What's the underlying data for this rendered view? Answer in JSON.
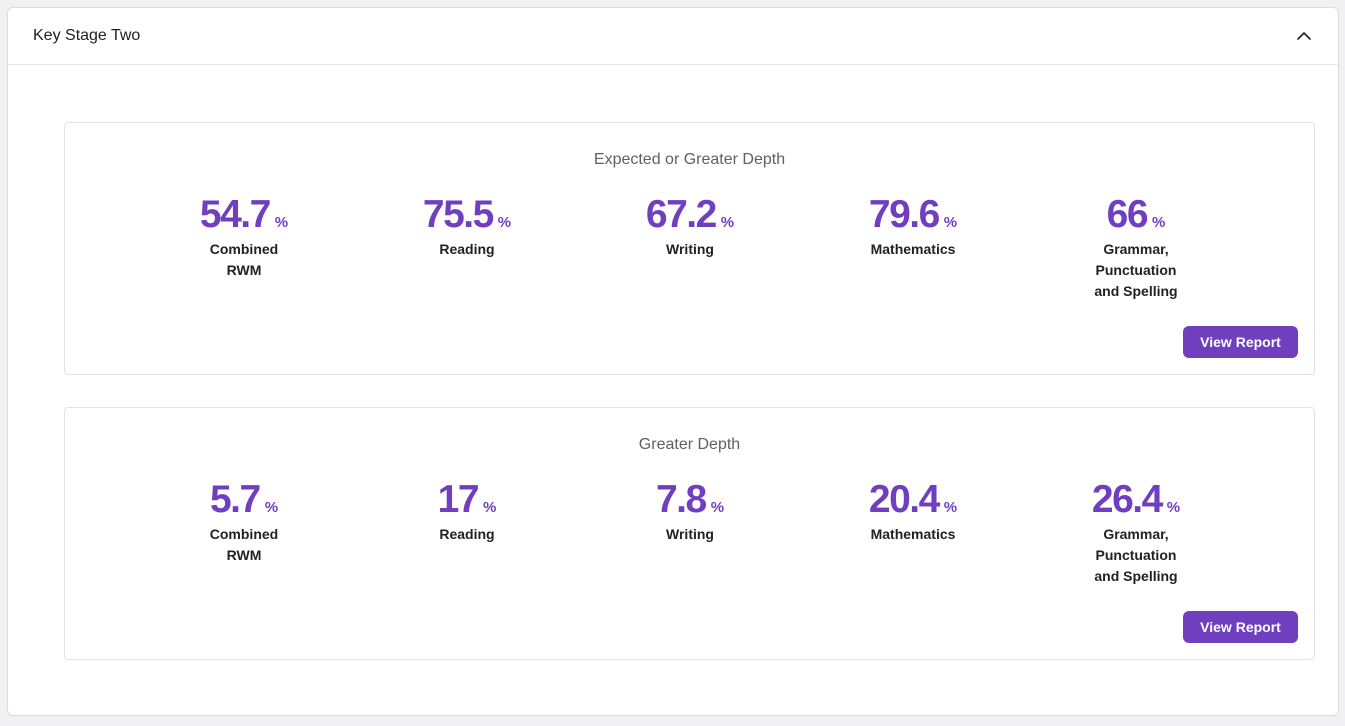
{
  "panel": {
    "title": "Key Stage Two"
  },
  "cards": [
    {
      "title": "Expected or Greater Depth",
      "button_label": "View Report",
      "stats": [
        {
          "value": "54.7",
          "unit": "%",
          "label": "Combined RWM"
        },
        {
          "value": "75.5",
          "unit": "%",
          "label": "Reading"
        },
        {
          "value": "67.2",
          "unit": "%",
          "label": "Writing"
        },
        {
          "value": "79.6",
          "unit": "%",
          "label": "Mathematics"
        },
        {
          "value": "66",
          "unit": "%",
          "label": "Grammar, Punctuation and Spelling"
        }
      ]
    },
    {
      "title": "Greater Depth",
      "button_label": "View Report",
      "stats": [
        {
          "value": "5.7",
          "unit": "%",
          "label": "Combined RWM"
        },
        {
          "value": "17",
          "unit": "%",
          "label": "Reading"
        },
        {
          "value": "7.8",
          "unit": "%",
          "label": "Writing"
        },
        {
          "value": "20.4",
          "unit": "%",
          "label": "Mathematics"
        },
        {
          "value": "26.4",
          "unit": "%",
          "label": "Grammar, Punctuation and Spelling"
        }
      ]
    }
  ],
  "icons": {
    "collapse": "chevron-up-icon"
  },
  "colors": {
    "accent": "#6f3fbf"
  }
}
